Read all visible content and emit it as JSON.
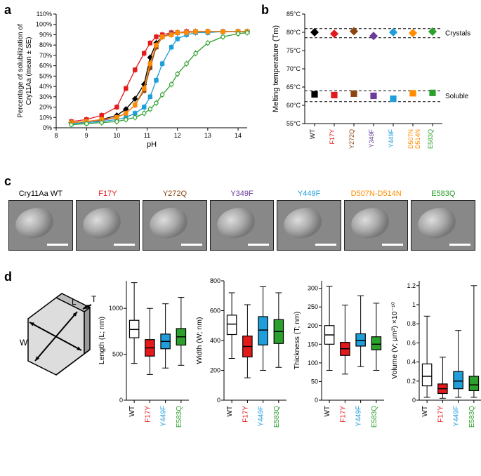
{
  "colors": {
    "WT": "#000000",
    "F17Y": "#e31a1c",
    "Y272Q": "#8b4513",
    "Y349F": "#6a3d9a",
    "Y449F": "#1f9ed9",
    "D507N_D514N": "#ff8c00",
    "E583Q": "#2ca02c"
  },
  "mutant_order": [
    "WT",
    "F17Y",
    "Y272Q",
    "Y349F",
    "Y449F",
    "D507N_D514N",
    "E583Q"
  ],
  "mutant_labels": [
    "WT",
    "F17Y",
    "Y272Q",
    "Y349F",
    "Y449F",
    "D507N-D514N",
    "E583Q"
  ],
  "panel_a": {
    "label": "a",
    "xlabel": "pH",
    "ylabel": "Percentage of solubilization of\nCry11Aa (mean ± SE)",
    "xlim": [
      8,
      14.3
    ],
    "xtick_step": 1,
    "ylim": [
      0,
      110
    ],
    "ytick_step": 10,
    "ytick_suffix": "%",
    "series": {
      "WT": {
        "x": [
          8.5,
          9,
          9.5,
          10,
          10.3,
          10.6,
          10.9,
          11.1,
          11.3,
          11.5,
          11.8,
          12,
          12.3,
          12.6,
          13,
          13.5,
          14,
          14.3
        ],
        "y": [
          5,
          6,
          8,
          12,
          18,
          28,
          42,
          68,
          82,
          88,
          91,
          92,
          92,
          93,
          93,
          93,
          93,
          93
        ],
        "marker": "diamond",
        "open": false
      },
      "F17Y": {
        "x": [
          8.5,
          9,
          9.5,
          10,
          10.3,
          10.6,
          10.9,
          11.1,
          11.3,
          11.5,
          11.8,
          12,
          12.3,
          12.6,
          13,
          13.5,
          14,
          14.3
        ],
        "y": [
          6,
          8,
          12,
          20,
          38,
          56,
          72,
          82,
          88,
          90,
          92,
          92,
          93,
          93,
          93,
          93,
          93,
          93
        ],
        "marker": "square",
        "open": false
      },
      "Y272Q": {
        "x": [
          8.5,
          9,
          9.5,
          10,
          10.3,
          10.6,
          10.9,
          11.1,
          11.3,
          11.5,
          11.8,
          12,
          12.3,
          12.6,
          13,
          13.5,
          14,
          14.3
        ],
        "y": [
          5,
          6,
          8,
          10,
          14,
          22,
          36,
          58,
          78,
          88,
          90,
          92,
          92,
          93,
          93,
          93,
          93,
          93
        ],
        "marker": "square",
        "open": false
      },
      "Y349F": {
        "x": [
          8.5,
          9,
          9.5,
          10,
          10.3,
          10.6,
          10.9,
          11.1,
          11.3,
          11.5,
          11.8,
          12,
          12.3,
          12.6,
          13,
          13.5,
          14,
          14.3
        ],
        "y": [
          5,
          6,
          7,
          10,
          14,
          22,
          38,
          62,
          80,
          88,
          91,
          92,
          92,
          93,
          93,
          93,
          93,
          93
        ],
        "marker": "square",
        "open": false
      },
      "Y449F": {
        "x": [
          8.5,
          9,
          9.5,
          10,
          10.3,
          10.6,
          10.9,
          11.1,
          11.3,
          11.5,
          11.8,
          12,
          12.3,
          12.6,
          13,
          13.5,
          14,
          14.3
        ],
        "y": [
          4,
          5,
          6,
          8,
          10,
          14,
          20,
          30,
          46,
          62,
          78,
          86,
          90,
          92,
          92,
          93,
          93,
          93
        ],
        "marker": "square",
        "open": false
      },
      "D507N_D514N": {
        "x": [
          8.5,
          9,
          9.5,
          10,
          10.3,
          10.6,
          10.9,
          11.1,
          11.3,
          11.5,
          11.8,
          12,
          12.3,
          12.6,
          13,
          13.5,
          14,
          14.3
        ],
        "y": [
          5,
          6,
          8,
          10,
          14,
          22,
          38,
          62,
          80,
          88,
          90,
          92,
          92,
          93,
          93,
          93,
          93,
          93
        ],
        "marker": "square",
        "open": false
      },
      "E583Q": {
        "x": [
          8.5,
          9,
          9.5,
          10,
          10.3,
          10.6,
          10.9,
          11.1,
          11.3,
          11.5,
          11.8,
          12,
          12.3,
          12.6,
          13,
          13.5,
          14,
          14.3
        ],
        "y": [
          3,
          4,
          5,
          6,
          8,
          10,
          14,
          18,
          24,
          32,
          42,
          52,
          62,
          72,
          82,
          88,
          91,
          92
        ],
        "marker": "circle",
        "open": true
      }
    },
    "error": 3
  },
  "panel_b": {
    "label": "b",
    "ylabel": "Melting temperature (Tm)",
    "ylim": [
      55,
      85
    ],
    "ytick_step": 5,
    "ytick_suffix": "°C",
    "groups": [
      {
        "label": "Crystals",
        "band": [
          78.5,
          81
        ],
        "marker": "diamond",
        "values": {
          "WT": 80,
          "F17Y": 79.6,
          "Y272Q": 80.3,
          "Y349F": 79,
          "Y449F": 80,
          "D507N_D514N": 79.8,
          "E583Q": 80.2
        }
      },
      {
        "label": "Soluble",
        "band": [
          61,
          64
        ],
        "marker": "square",
        "values": {
          "WT": 63,
          "F17Y": 62.8,
          "Y272Q": 63.2,
          "Y349F": 62.6,
          "Y449F": 61.8,
          "D507N_D514N": 63.3,
          "E583Q": 63.4
        }
      }
    ]
  },
  "panel_c": {
    "label": "c",
    "images": [
      "Cry11Aa WT",
      "F17Y",
      "Y272Q",
      "Y349F",
      "Y449F",
      "D507N-D514N",
      "E583Q"
    ]
  },
  "panel_d": {
    "label": "d",
    "subset": [
      "WT",
      "F17Y",
      "Y449F",
      "E583Q"
    ],
    "diagram_labels": {
      "L": "L",
      "W": "W",
      "T": "T"
    },
    "plots": [
      {
        "ylabel": "Length (L; nm)",
        "ylim": [
          0,
          1300
        ],
        "yticks": [
          0,
          500,
          1000
        ],
        "data": {
          "WT": {
            "min": 400,
            "q1": 680,
            "med": 770,
            "q3": 870,
            "max": 1280
          },
          "F17Y": {
            "min": 280,
            "q1": 480,
            "med": 570,
            "q3": 660,
            "max": 1000
          },
          "Y449F": {
            "min": 350,
            "q1": 560,
            "med": 640,
            "q3": 720,
            "max": 1050
          },
          "E583Q": {
            "min": 380,
            "q1": 600,
            "med": 690,
            "q3": 780,
            "max": 1120
          }
        }
      },
      {
        "ylabel": "Width (W; nm)",
        "ylim": [
          0,
          800
        ],
        "yticks": [
          0,
          200,
          400,
          600,
          800
        ],
        "data": {
          "WT": {
            "min": 280,
            "q1": 440,
            "med": 510,
            "q3": 570,
            "max": 720
          },
          "F17Y": {
            "min": 150,
            "q1": 290,
            "med": 360,
            "q3": 430,
            "max": 640
          },
          "Y449F": {
            "min": 200,
            "q1": 370,
            "med": 470,
            "q3": 560,
            "max": 760
          },
          "E583Q": {
            "min": 220,
            "q1": 380,
            "med": 460,
            "q3": 540,
            "max": 720
          }
        }
      },
      {
        "ylabel": "Thickness (T; nm)",
        "ylim": [
          0,
          320
        ],
        "yticks": [
          0,
          50,
          100,
          150,
          200,
          250,
          300
        ],
        "data": {
          "WT": {
            "min": 80,
            "q1": 150,
            "med": 175,
            "q3": 200,
            "max": 305
          },
          "F17Y": {
            "min": 70,
            "q1": 120,
            "med": 138,
            "q3": 155,
            "max": 255
          },
          "Y449F": {
            "min": 90,
            "q1": 145,
            "med": 160,
            "q3": 178,
            "max": 280
          },
          "E583Q": {
            "min": 80,
            "q1": 135,
            "med": 150,
            "q3": 170,
            "max": 260
          }
        }
      },
      {
        "ylabel": "Volume (V; μm³) ×10⁻¹⁰",
        "ylim": [
          0,
          1.25
        ],
        "yticks": [
          0,
          0.2,
          0.4,
          0.6,
          0.8,
          1.0,
          1.2
        ],
        "data": {
          "WT": {
            "min": 0.03,
            "q1": 0.15,
            "med": 0.25,
            "q3": 0.38,
            "max": 0.88
          },
          "F17Y": {
            "min": 0.02,
            "q1": 0.07,
            "med": 0.12,
            "q3": 0.17,
            "max": 0.45
          },
          "Y449F": {
            "min": 0.03,
            "q1": 0.12,
            "med": 0.2,
            "q3": 0.3,
            "max": 0.73
          },
          "E583Q": {
            "min": 0.03,
            "q1": 0.1,
            "med": 0.16,
            "q3": 0.25,
            "max": 1.2
          }
        }
      }
    ]
  }
}
